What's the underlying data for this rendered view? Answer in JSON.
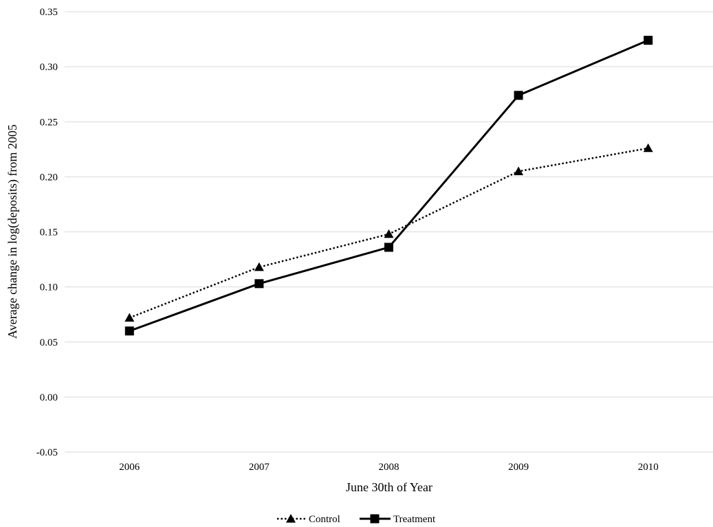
{
  "chart_data": {
    "type": "line",
    "title": "",
    "xlabel": "June 30th of Year",
    "ylabel": "Average change in log(deposits) from 2005",
    "categories": [
      "2006",
      "2007",
      "2008",
      "2009",
      "2010"
    ],
    "ylim": [
      -0.05,
      0.35
    ],
    "yticks": [
      "-0.05",
      "0.00",
      "0.05",
      "0.10",
      "0.15",
      "0.20",
      "0.25",
      "0.30",
      "0.35"
    ],
    "grid": "horizontal",
    "legend_position": "bottom",
    "series": [
      {
        "name": "Control",
        "values": [
          0.072,
          0.118,
          0.148,
          0.205,
          0.226
        ],
        "marker": "triangle",
        "line": "dotted",
        "color": "#000000"
      },
      {
        "name": "Treatment",
        "values": [
          0.06,
          0.103,
          0.136,
          0.274,
          0.324
        ],
        "marker": "square",
        "line": "solid",
        "color": "#000000"
      }
    ]
  }
}
